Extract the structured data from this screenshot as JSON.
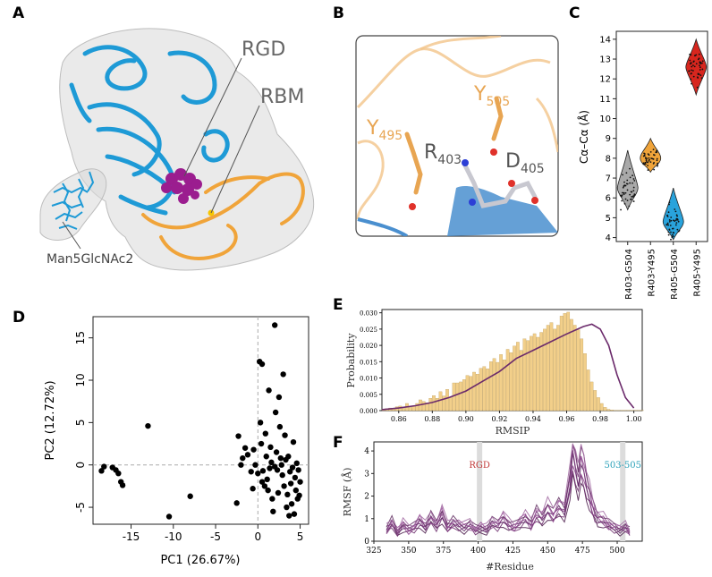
{
  "panel_labels": {
    "a": "A",
    "b": "B",
    "c": "C",
    "d": "D",
    "e": "E",
    "f": "F"
  },
  "panel_a": {
    "rgd": "RGD",
    "rbm": "RBM",
    "glycan": "Man5GlcNAc2"
  },
  "panel_b": {
    "y495": {
      "base": "Y",
      "sub": "495"
    },
    "y505": {
      "base": "Y",
      "sub": "505"
    },
    "r403": {
      "base": "R",
      "sub": "403"
    },
    "d405": {
      "base": "D",
      "sub": "405"
    }
  },
  "colors": {
    "blue": "#1e9ad6",
    "orange": "#f0a43a",
    "magenta": "#9b1d8f",
    "red": "#d7261e",
    "purple": "#6b2a6b",
    "bar": "#f2cf8a",
    "rgd_text": "#c23b3b",
    "res_text": "#2aa0b8"
  },
  "chart_data": [
    {
      "panel": "C",
      "type": "violin",
      "ylabel_text": "Cα–Cα (Å)",
      "categories": [
        "R403-G504",
        "R403-Y495",
        "R405-G504",
        "R405-Y495"
      ],
      "colors": [
        "#a9a9a9",
        "#f0a43a",
        "#29a3dc",
        "#d7261e"
      ],
      "medians": [
        6.5,
        8.0,
        4.8,
        12.6
      ],
      "ranges": [
        [
          5.4,
          8.4
        ],
        [
          7.3,
          9.0
        ],
        [
          3.9,
          6.5
        ],
        [
          11.2,
          14.0
        ]
      ],
      "ylim": [
        3.8,
        14.4
      ],
      "yticks": [
        "4",
        "5",
        "6",
        "7",
        "8",
        "9",
        "10",
        "11",
        "12",
        "13",
        "14"
      ]
    },
    {
      "panel": "D",
      "type": "scatter",
      "xlabel": "PC1 (26.67%)",
      "ylabel": "PC2 (12.72%)",
      "xlim": [
        -19.5,
        6
      ],
      "ylim": [
        -7,
        17.5
      ],
      "xticks": [
        "-15",
        "-10",
        "-5",
        "0",
        "5"
      ],
      "yticks": [
        "-5",
        "0",
        "5",
        "10",
        "15"
      ],
      "points": [
        [
          -18.5,
          -0.7
        ],
        [
          -18.2,
          -0.2
        ],
        [
          -17.2,
          -0.3
        ],
        [
          -16.8,
          -0.6
        ],
        [
          -16.5,
          -1.0
        ],
        [
          -16.2,
          -2.0
        ],
        [
          -16.0,
          -2.4
        ],
        [
          -13.0,
          4.6
        ],
        [
          -10.5,
          -6.1
        ],
        [
          -8.0,
          -3.7
        ],
        [
          -2.5,
          -4.5
        ],
        [
          -2.3,
          3.4
        ],
        [
          -2.0,
          0.0
        ],
        [
          -1.8,
          0.8
        ],
        [
          -1.5,
          2.0
        ],
        [
          -1.2,
          1.2
        ],
        [
          -0.8,
          -0.8
        ],
        [
          -0.5,
          1.8
        ],
        [
          -0.3,
          0.0
        ],
        [
          0.2,
          12.2
        ],
        [
          0.5,
          11.9
        ],
        [
          0.3,
          5.0
        ],
        [
          0.4,
          2.5
        ],
        [
          0.6,
          -0.7
        ],
        [
          0.5,
          -2.0
        ],
        [
          0.9,
          3.7
        ],
        [
          1.0,
          1.0
        ],
        [
          1.1,
          -1.7
        ],
        [
          1.2,
          -3.0
        ],
        [
          1.3,
          8.8
        ],
        [
          1.5,
          2.1
        ],
        [
          1.6,
          0.3
        ],
        [
          1.7,
          -4.0
        ],
        [
          1.8,
          -5.5
        ],
        [
          2.0,
          16.5
        ],
        [
          2.1,
          6.2
        ],
        [
          2.2,
          1.5
        ],
        [
          2.3,
          -0.6
        ],
        [
          2.4,
          -3.3
        ],
        [
          2.5,
          8.0
        ],
        [
          2.6,
          4.5
        ],
        [
          2.8,
          0.0
        ],
        [
          2.9,
          -1.2
        ],
        [
          3.0,
          10.7
        ],
        [
          3.1,
          -2.5
        ],
        [
          3.2,
          3.5
        ],
        [
          3.3,
          0.6
        ],
        [
          3.4,
          -5.0
        ],
        [
          3.5,
          -3.5
        ],
        [
          3.6,
          1.0
        ],
        [
          3.8,
          -0.8
        ],
        [
          3.9,
          -2.2
        ],
        [
          4.0,
          -4.6
        ],
        [
          4.1,
          -0.3
        ],
        [
          4.2,
          2.7
        ],
        [
          4.3,
          -5.8
        ],
        [
          4.4,
          -1.5
        ],
        [
          4.5,
          -3.0
        ],
        [
          4.6,
          0.2
        ],
        [
          4.7,
          -4.0
        ],
        [
          4.8,
          -0.6
        ],
        [
          5.0,
          -2.0
        ],
        [
          0.0,
          -1.0
        ],
        [
          1.4,
          -0.4
        ],
        [
          2.7,
          0.8
        ],
        [
          3.7,
          -6.0
        ],
        [
          -0.6,
          -2.8
        ],
        [
          2.0,
          -0.2
        ],
        [
          4.9,
          -3.6
        ],
        [
          0.8,
          -2.5
        ]
      ]
    },
    {
      "panel": "E",
      "type": "histogram+density",
      "xlabel": "RMSIP",
      "ylabel": "Probability",
      "xlim": [
        0.85,
        1.005
      ],
      "ylim": [
        0,
        0.031
      ],
      "xticks": [
        "0.86",
        "0.88",
        "0.90",
        "0.92",
        "0.94",
        "0.96",
        "0.98",
        "1.00"
      ],
      "yticks": [
        "0.000",
        "0.005",
        "0.010",
        "0.015",
        "0.020",
        "0.025",
        "0.030"
      ],
      "bin_start": 0.85,
      "bin_width": 0.002,
      "values": [
        0.0005,
        0.0006,
        0.0008,
        0.0006,
        0.0012,
        0.0014,
        0.0007,
        0.0022,
        0.001,
        0.0015,
        0.0022,
        0.0033,
        0.0028,
        0.0024,
        0.0038,
        0.0046,
        0.0038,
        0.0058,
        0.0045,
        0.0065,
        0.004,
        0.0085,
        0.0085,
        0.0088,
        0.0095,
        0.0108,
        0.0105,
        0.0118,
        0.0112,
        0.013,
        0.0135,
        0.0128,
        0.015,
        0.016,
        0.0148,
        0.0172,
        0.0156,
        0.0188,
        0.0178,
        0.0198,
        0.021,
        0.0185,
        0.022,
        0.0215,
        0.0228,
        0.0236,
        0.0225,
        0.024,
        0.025,
        0.0262,
        0.027,
        0.025,
        0.0262,
        0.029,
        0.0298,
        0.0302,
        0.028,
        0.0262,
        0.0248,
        0.022,
        0.0175,
        0.0125,
        0.0088,
        0.0062,
        0.004,
        0.0022,
        0.001,
        0.0004,
        0.0002,
        0.0001,
        0.0001,
        0.0001,
        0.0001,
        0.0001,
        0.0001,
        0.0001,
        0.0001,
        0.0001
      ],
      "density_x": [
        0.85,
        0.86,
        0.87,
        0.88,
        0.89,
        0.9,
        0.91,
        0.92,
        0.93,
        0.94,
        0.95,
        0.96,
        0.97,
        0.975,
        0.98,
        0.985,
        0.99,
        0.995,
        1.0
      ],
      "density_y": [
        0.0003,
        0.0008,
        0.0015,
        0.0025,
        0.004,
        0.006,
        0.009,
        0.012,
        0.016,
        0.0185,
        0.021,
        0.0235,
        0.0258,
        0.0265,
        0.025,
        0.02,
        0.011,
        0.004,
        0.0008
      ]
    },
    {
      "panel": "F",
      "type": "line",
      "xlabel": "#Residue",
      "ylabel": "RMSF (Å)",
      "xlim": [
        325,
        518
      ],
      "ylim": [
        0,
        4.4
      ],
      "xticks": [
        "325",
        "350",
        "375",
        "400",
        "425",
        "450",
        "475",
        "500"
      ],
      "yticks": [
        "0",
        "1",
        "2",
        "3",
        "4"
      ],
      "highlight_regions": [
        {
          "label": "RGD",
          "x": 401
        },
        {
          "label": "503-505",
          "x": 504
        }
      ],
      "series_count": 8,
      "x": [
        334,
        338,
        342,
        346,
        350,
        354,
        358,
        362,
        366,
        370,
        374,
        378,
        382,
        386,
        390,
        394,
        398,
        402,
        406,
        410,
        414,
        418,
        422,
        426,
        430,
        434,
        438,
        442,
        446,
        450,
        454,
        458,
        462,
        466,
        468,
        470,
        472,
        474,
        476,
        478,
        480,
        482,
        484,
        486,
        490,
        494,
        498,
        502,
        506,
        509
      ],
      "base": [
        0.5,
        0.8,
        0.4,
        0.7,
        0.5,
        0.6,
        0.9,
        0.6,
        1.0,
        0.7,
        1.2,
        0.6,
        0.8,
        0.7,
        0.6,
        0.7,
        0.5,
        0.6,
        0.5,
        0.8,
        0.7,
        1.0,
        0.7,
        0.6,
        0.8,
        1.0,
        0.7,
        1.2,
        1.0,
        1.4,
        1.1,
        1.5,
        1.3,
        2.5,
        3.8,
        3.2,
        2.6,
        3.4,
        3.0,
        2.4,
        2.0,
        1.5,
        1.2,
        1.0,
        0.9,
        0.7,
        0.6,
        0.5,
        0.6,
        0.4
      ]
    }
  ]
}
